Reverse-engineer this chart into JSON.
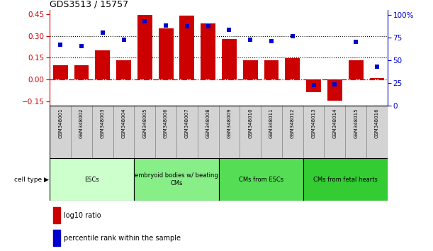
{
  "title": "GDS3513 / 15757",
  "samples": [
    "GSM348001",
    "GSM348002",
    "GSM348003",
    "GSM348004",
    "GSM348005",
    "GSM348006",
    "GSM348007",
    "GSM348008",
    "GSM348009",
    "GSM348010",
    "GSM348011",
    "GSM348012",
    "GSM348013",
    "GSM348014",
    "GSM348015",
    "GSM348016"
  ],
  "log10_ratio": [
    0.1,
    0.1,
    0.2,
    0.13,
    0.445,
    0.355,
    0.44,
    0.39,
    0.28,
    0.13,
    0.13,
    0.145,
    -0.09,
    -0.145,
    0.13,
    0.01
  ],
  "percentile_rank": [
    67,
    65,
    80,
    72,
    93,
    88,
    87,
    87,
    83,
    72,
    71,
    76,
    22,
    23,
    70,
    43
  ],
  "ylim_left": [
    -0.18,
    0.48
  ],
  "ylim_right": [
    0,
    105
  ],
  "yticks_left": [
    -0.15,
    0,
    0.15,
    0.3,
    0.45
  ],
  "yticks_right": [
    0,
    25,
    50,
    75,
    100
  ],
  "bar_color": "#cc0000",
  "dot_color": "#0000cc",
  "hline_color": "#cc0000",
  "dotline_color": "#000000",
  "cell_groups": [
    {
      "label": "ESCs",
      "start": 0,
      "end": 3,
      "color": "#ccffcc"
    },
    {
      "label": "embryoid bodies w/ beating\nCMs",
      "start": 4,
      "end": 7,
      "color": "#88ee88"
    },
    {
      "label": "CMs from ESCs",
      "start": 8,
      "end": 11,
      "color": "#66dd66"
    },
    {
      "label": "CMs from fetal hearts",
      "start": 12,
      "end": 15,
      "color": "#44cc44"
    }
  ],
  "legend_bar_label": "log10 ratio",
  "legend_dot_label": "percentile rank within the sample",
  "label_bg_color": "#d3d3d3",
  "cell_type_label": "cell type"
}
